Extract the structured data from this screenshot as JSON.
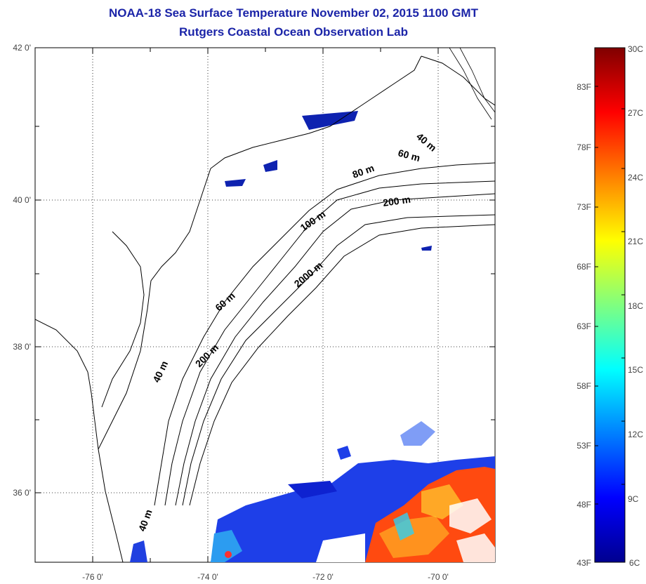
{
  "header": {
    "title_line1": "NOAA-18 Sea Surface Temperature November 02, 2015 1100 GMT",
    "title_line2": "Rutgers Coastal Ocean Observation Lab"
  },
  "map": {
    "lat_labels": [
      "42 0'",
      "40 0'",
      "38 0'",
      "36 0'"
    ],
    "lon_labels": [
      "-76 0'",
      "-74 0'",
      "-72 0'",
      "-70 0'"
    ],
    "contour_labels": [
      "40 m",
      "60 m",
      "80 m",
      "200 m",
      "100 m",
      "2000 m",
      "60 m",
      "200 m",
      "40 m",
      "40 m"
    ],
    "colors": {
      "land_line": "#000000",
      "grid": "#000000",
      "frame": "#000000"
    }
  },
  "colorbar": {
    "celsius_labels": [
      "30C",
      "27C",
      "24C",
      "21C",
      "18C",
      "15C",
      "12C",
      "9C",
      "6C"
    ],
    "fahrenheit_labels": [
      "83F",
      "78F",
      "73F",
      "68F",
      "63F",
      "58F",
      "53F",
      "48F",
      "43F"
    ],
    "colors": [
      "#00008f",
      "#0000ff",
      "#0080ff",
      "#00ffff",
      "#80ff80",
      "#ffff00",
      "#ff8000",
      "#ff0000",
      "#800000"
    ]
  }
}
